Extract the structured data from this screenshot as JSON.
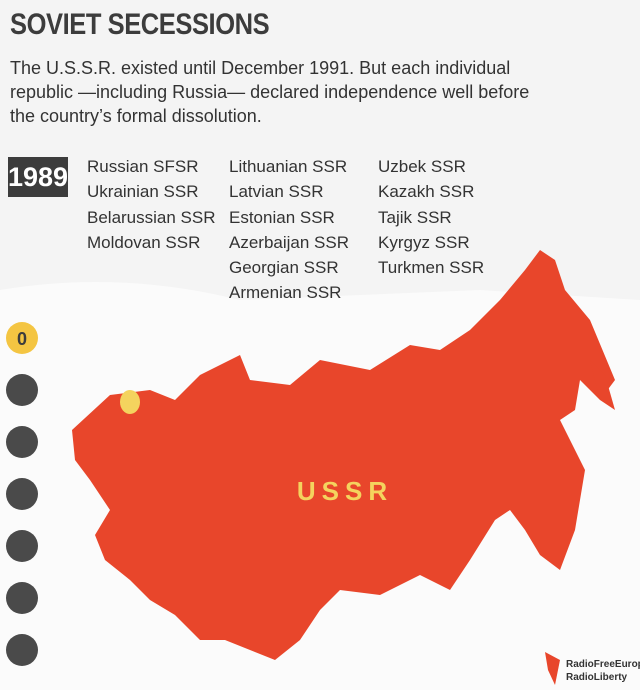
{
  "header": {
    "title": "SOVIET SECESSIONS",
    "description": "The U.S.S.R. existed until December 1991. But each individual republic —including Russia— declared independence well before the country’s formal dissolution."
  },
  "year": "1989",
  "republics": [
    [
      "Russian SFSR",
      "Ukrainian SSR",
      "Belarussian SSR",
      "Moldovan SSR"
    ],
    [
      "Lithuanian SSR",
      "Latvian SSR",
      "Estonian SSR",
      "Azerbaijan SSR",
      "Georgian SSR",
      "Armenian SSR"
    ],
    [
      "Uzbek SSR",
      "Kazakh SSR",
      "Tajik SSR",
      "Kyrgyz SSR",
      "Turkmen SSR"
    ]
  ],
  "map": {
    "label": "USSR"
  },
  "timeline": {
    "current": "0"
  },
  "logo": {
    "line1": "RadioFreeEurope",
    "line2": "RadioLiberty"
  }
}
